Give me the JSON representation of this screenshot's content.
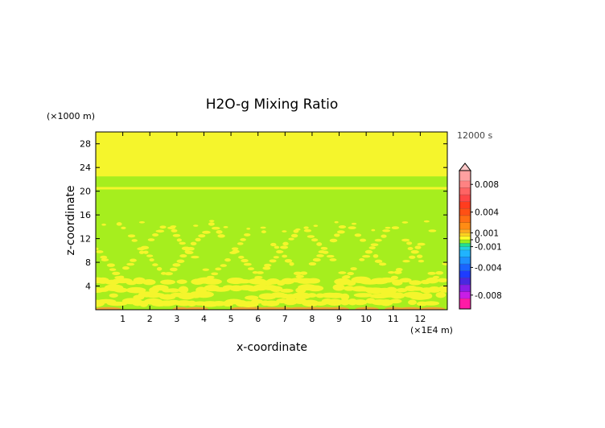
{
  "chart_data": {
    "type": "heatmap",
    "title": "H2O-g Mixing Ratio",
    "xlabel": "x-coordinate",
    "ylabel": "z-coordinate",
    "x_unit": "(×1E4 m)",
    "y_unit": "(×1000 m)",
    "time_label": "12000 s",
    "xlim": [
      0,
      13
    ],
    "ylim": [
      0,
      30
    ],
    "x_ticks": [
      1,
      2,
      3,
      4,
      5,
      6,
      7,
      8,
      9,
      10,
      11,
      12
    ],
    "x_tick_labels": [
      "1",
      "2",
      "3",
      "4",
      "5",
      "6",
      "7",
      "8",
      "9",
      "10",
      "11",
      "12"
    ],
    "y_ticks": [
      4,
      8,
      12,
      16,
      20,
      24,
      28
    ],
    "y_tick_labels": [
      "4",
      "8",
      "12",
      "16",
      "20",
      "24",
      "28"
    ],
    "field": {
      "background_level": "-0.001 to 0 (green)",
      "upper_level": "0 to 0.001 (yellow)",
      "yellow_band_above_z": 22.5,
      "yellow_stripe_z": 20.5,
      "wave_pattern_z_range": [
        0,
        15
      ],
      "surface_anomaly": "slightly positive near z=0"
    },
    "colorbar": {
      "extend_top": true,
      "labels": [
        "0.008",
        "0.004",
        "0.001",
        "0",
        "-0.001",
        "-0.004",
        "-0.008"
      ],
      "label_values": [
        0.008,
        0.004,
        0.001,
        0,
        -0.001,
        -0.004,
        -0.008
      ],
      "levels": [
        {
          "from": -0.01,
          "to": -0.0085,
          "color": "#ff1aa6"
        },
        {
          "from": -0.0085,
          "to": -0.0075,
          "color": "#c81ee6"
        },
        {
          "from": -0.0075,
          "to": -0.0065,
          "color": "#8a1ee6"
        },
        {
          "from": -0.0065,
          "to": -0.0055,
          "color": "#4a28e0"
        },
        {
          "from": -0.0055,
          "to": -0.0045,
          "color": "#1e3cff"
        },
        {
          "from": -0.0045,
          "to": -0.0035,
          "color": "#1a64ff"
        },
        {
          "from": -0.0035,
          "to": -0.0025,
          "color": "#1e90ff"
        },
        {
          "from": -0.0025,
          "to": -0.0015,
          "color": "#20b4ff"
        },
        {
          "from": -0.0015,
          "to": -0.001,
          "color": "#22d2dc"
        },
        {
          "from": -0.001,
          "to": -0.0005,
          "color": "#22e08c"
        },
        {
          "from": -0.0005,
          "to": 0,
          "color": "#96f01e"
        },
        {
          "from": 0,
          "to": 0.0005,
          "color": "#ffff28"
        },
        {
          "from": 0.0005,
          "to": 0.001,
          "color": "#ffd21e"
        },
        {
          "from": 0.001,
          "to": 0.0015,
          "color": "#ffaa1e"
        },
        {
          "from": 0.0015,
          "to": 0.0025,
          "color": "#ff8c14"
        },
        {
          "from": 0.0025,
          "to": 0.0035,
          "color": "#ff6e14"
        },
        {
          "from": 0.0035,
          "to": 0.0045,
          "color": "#ff5014"
        },
        {
          "from": 0.0045,
          "to": 0.0055,
          "color": "#ff3c1e"
        },
        {
          "from": 0.0055,
          "to": 0.0065,
          "color": "#ff4646"
        },
        {
          "from": 0.0065,
          "to": 0.0075,
          "color": "#ff6464"
        },
        {
          "from": 0.0075,
          "to": 0.0085,
          "color": "#ff8282"
        },
        {
          "from": 0.0085,
          "to": 0.01,
          "color": "#ffa0a0"
        }
      ],
      "extend_color": "#ffc8c8"
    },
    "colors": {
      "green": "#a6ee1e",
      "yellow": "#f5f52c",
      "orange": "#f2a436"
    }
  }
}
